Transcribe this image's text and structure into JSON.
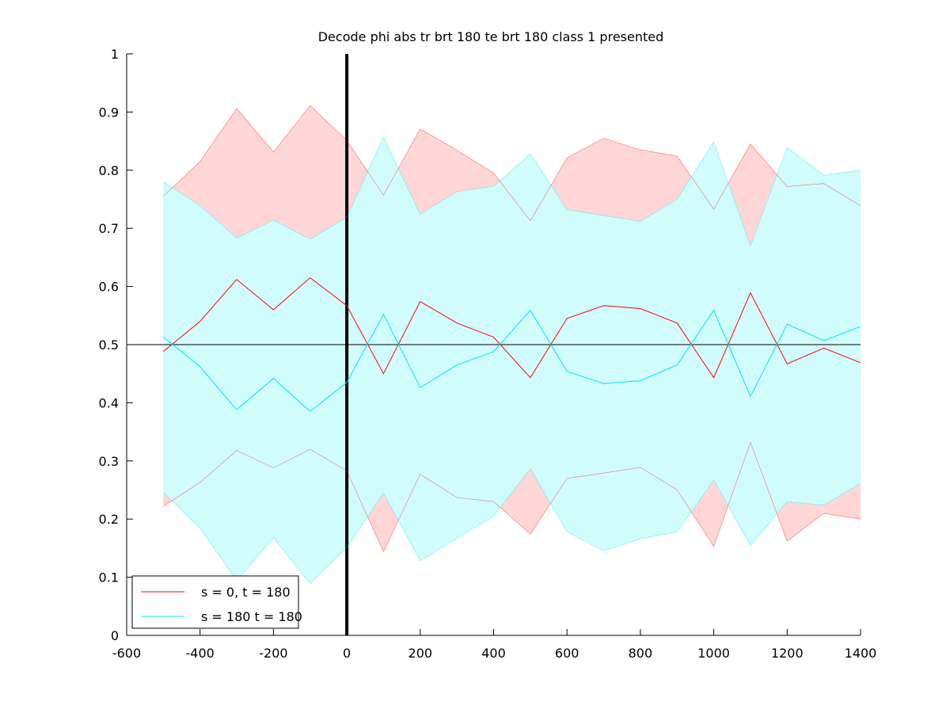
{
  "chart_data": {
    "type": "line",
    "title": "Decode phi abs tr brt 180 te brt 180  class 1 presented",
    "xlabel": "",
    "ylabel": "",
    "xlim": [
      -600,
      1400
    ],
    "ylim": [
      0,
      1
    ],
    "x_ticks": [
      -600,
      -400,
      -200,
      0,
      200,
      400,
      600,
      800,
      1000,
      1200,
      1400
    ],
    "x_tick_labels": [
      "-600",
      "-400",
      "-200",
      "0",
      "200",
      "400",
      "600",
      "800",
      "1000",
      "1200",
      "1400"
    ],
    "y_ticks": [
      0,
      0.1,
      0.2,
      0.3,
      0.4,
      0.5,
      0.6,
      0.7,
      0.8,
      0.9,
      1
    ],
    "y_tick_labels": [
      "0",
      "0.1",
      "0.2",
      "0.3",
      "0.4",
      "0.5",
      "0.6",
      "0.7",
      "0.8",
      "0.9",
      "1"
    ],
    "x": [
      -500,
      -400,
      -300,
      -200,
      -100,
      0,
      100,
      200,
      300,
      400,
      500,
      600,
      700,
      800,
      900,
      1000,
      1100,
      1200,
      1300,
      1400
    ],
    "series": [
      {
        "name": "s = 0, t = 180",
        "color": "#ff0000",
        "band_fill": "#ffd6d6",
        "mean": [
          0.488,
          0.54,
          0.612,
          0.56,
          0.615,
          0.567,
          0.45,
          0.574,
          0.537,
          0.513,
          0.443,
          0.545,
          0.567,
          0.562,
          0.537,
          0.443,
          0.589,
          0.467,
          0.494,
          0.469
        ],
        "upper": [
          0.755,
          0.815,
          0.906,
          0.831,
          0.911,
          0.851,
          0.757,
          0.871,
          0.834,
          0.795,
          0.713,
          0.821,
          0.855,
          0.835,
          0.824,
          0.733,
          0.845,
          0.772,
          0.777,
          0.739
        ],
        "lower": [
          0.222,
          0.263,
          0.318,
          0.288,
          0.32,
          0.283,
          0.144,
          0.277,
          0.237,
          0.23,
          0.174,
          0.27,
          0.279,
          0.289,
          0.25,
          0.153,
          0.332,
          0.162,
          0.21,
          0.2
        ]
      },
      {
        "name": "s = 180 t = 180",
        "color": "#00e5ee",
        "band_fill": "#d1fcfc",
        "mean": [
          0.513,
          0.462,
          0.388,
          0.442,
          0.385,
          0.435,
          0.552,
          0.426,
          0.465,
          0.488,
          0.559,
          0.454,
          0.433,
          0.438,
          0.465,
          0.559,
          0.411,
          0.535,
          0.507,
          0.531
        ],
        "upper": [
          0.78,
          0.739,
          0.683,
          0.714,
          0.681,
          0.719,
          0.857,
          0.724,
          0.763,
          0.772,
          0.828,
          0.732,
          0.722,
          0.712,
          0.75,
          0.849,
          0.67,
          0.839,
          0.791,
          0.8
        ],
        "lower": [
          0.246,
          0.184,
          0.094,
          0.168,
          0.089,
          0.151,
          0.245,
          0.128,
          0.167,
          0.205,
          0.287,
          0.178,
          0.145,
          0.166,
          0.178,
          0.267,
          0.155,
          0.23,
          0.224,
          0.262
        ]
      }
    ],
    "reference_lines": [
      {
        "orientation": "horizontal",
        "value": 0.5,
        "color": "#000000",
        "style": "thin"
      },
      {
        "orientation": "vertical",
        "value": 0,
        "color": "#000000",
        "style": "thick"
      }
    ],
    "grid": false,
    "legend": {
      "position": "bottom-left",
      "entries": [
        "s = 0, t = 180",
        "s = 180 t = 180"
      ]
    }
  }
}
